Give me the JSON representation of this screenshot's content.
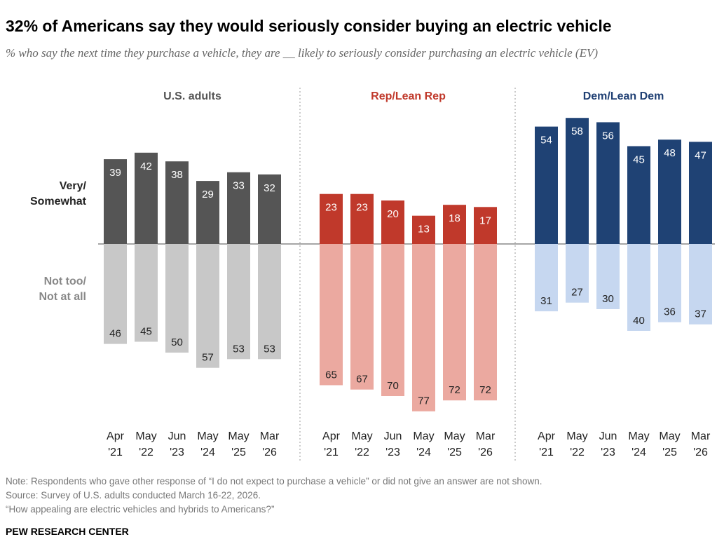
{
  "title": "32% of Americans say they would seriously consider buying an electric vehicle",
  "subtitle": "% who say the next time they purchase a vehicle, they are __ likely to seriously consider purchasing an electric vehicle (EV)",
  "notes": [
    "Note: Respondents who gave other response of “I do not expect to purchase a vehicle” or did not give an answer are not shown.",
    "Source: Survey of U.S. adults conducted March 16-22, 2026.",
    "“How appealing are electric vehicles and hybrids to Americans?”"
  ],
  "brand": "PEW RESEARCH CENTER",
  "chart_data": {
    "type": "bar",
    "row_labels": {
      "positive": [
        "Very/",
        "Somewhat"
      ],
      "negative": [
        "Not too/",
        "Not at all"
      ]
    },
    "categories": [
      [
        "Apr",
        "'21"
      ],
      [
        "May",
        "'22"
      ],
      [
        "Jun",
        "'23"
      ],
      [
        "May",
        "'24"
      ],
      [
        "May",
        "'25"
      ],
      [
        "Mar",
        "'26"
      ]
    ],
    "groups": [
      {
        "name": "U.S. adults",
        "title_color": "#555555",
        "pos_color": "#555555",
        "neg_color": "#c8c8c8",
        "very_somewhat": [
          39,
          42,
          38,
          29,
          33,
          32
        ],
        "not_too_not_at_all": [
          46,
          45,
          50,
          57,
          53,
          53
        ]
      },
      {
        "name": "Rep/Lean Rep",
        "title_color": "#c0392b",
        "pos_color": "#c0392b",
        "neg_color": "#eba9a0",
        "very_somewhat": [
          23,
          23,
          20,
          13,
          18,
          17
        ],
        "not_too_not_at_all": [
          65,
          67,
          70,
          77,
          72,
          72
        ]
      },
      {
        "name": "Dem/Lean Dem",
        "title_color": "#1f3f73",
        "pos_color": "#1f4274",
        "neg_color": "#c6d7f0",
        "very_somewhat": [
          54,
          58,
          56,
          45,
          48,
          47
        ],
        "not_too_not_at_all": [
          31,
          27,
          30,
          40,
          36,
          37
        ]
      }
    ]
  }
}
